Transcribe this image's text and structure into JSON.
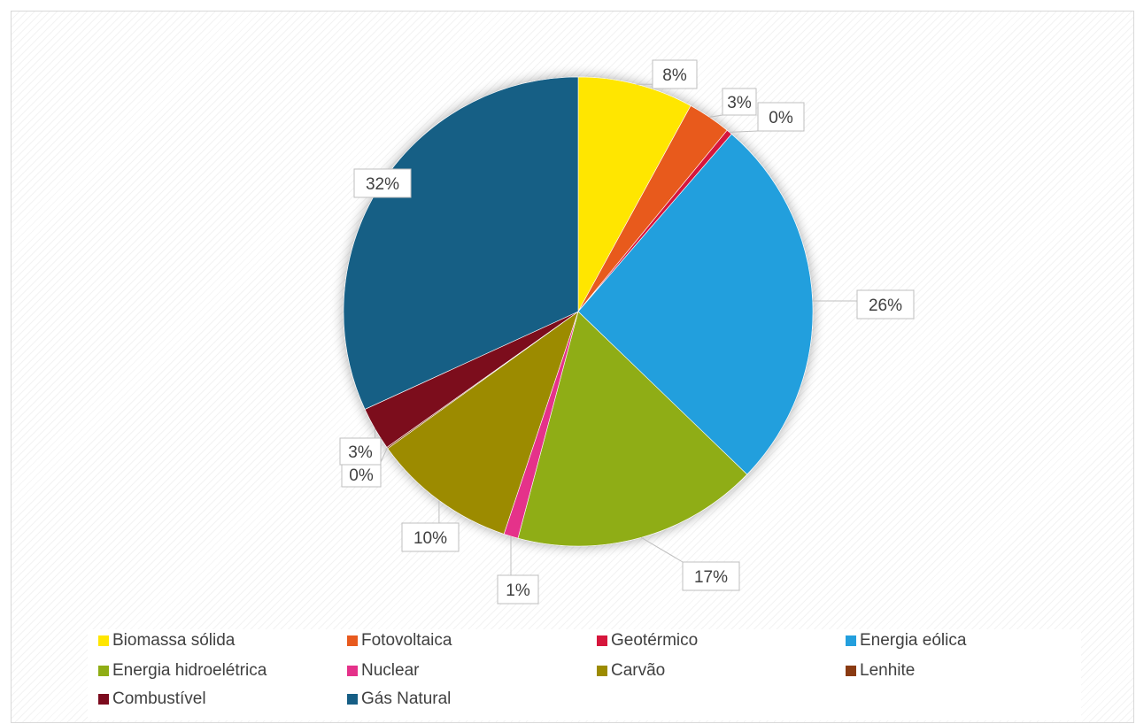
{
  "chart_data": {
    "type": "pie",
    "title": "",
    "slices": [
      {
        "name": "Biomassa sólida",
        "value": 8,
        "label": "8%",
        "color": "#FFE600"
      },
      {
        "name": "Fotovoltaica",
        "value": 3,
        "label": "3%",
        "color": "#E85A1E"
      },
      {
        "name": "Geotérmico",
        "value": 0.4,
        "label": "0%",
        "color": "#D6163C"
      },
      {
        "name": "Energia eólica",
        "value": 26,
        "label": "26%",
        "color": "#239FDD"
      },
      {
        "name": "Energia hidroelétrica",
        "value": 17,
        "label": "17%",
        "color": "#8FAD15"
      },
      {
        "name": "Nuclear",
        "value": 1,
        "label": "1%",
        "color": "#E5318A"
      },
      {
        "name": "Carvão",
        "value": 10,
        "label": "10%",
        "color": "#9C8B00"
      },
      {
        "name": "Lenhite",
        "value": 0.1,
        "label": "0%",
        "color": "#8A3A12"
      },
      {
        "name": "Combustível",
        "value": 3,
        "label": "3%",
        "color": "#7C0B1E"
      },
      {
        "name": "Gás Natural",
        "value": 32,
        "label": "32%",
        "color": "#165E85"
      }
    ],
    "legend_position": "bottom"
  }
}
